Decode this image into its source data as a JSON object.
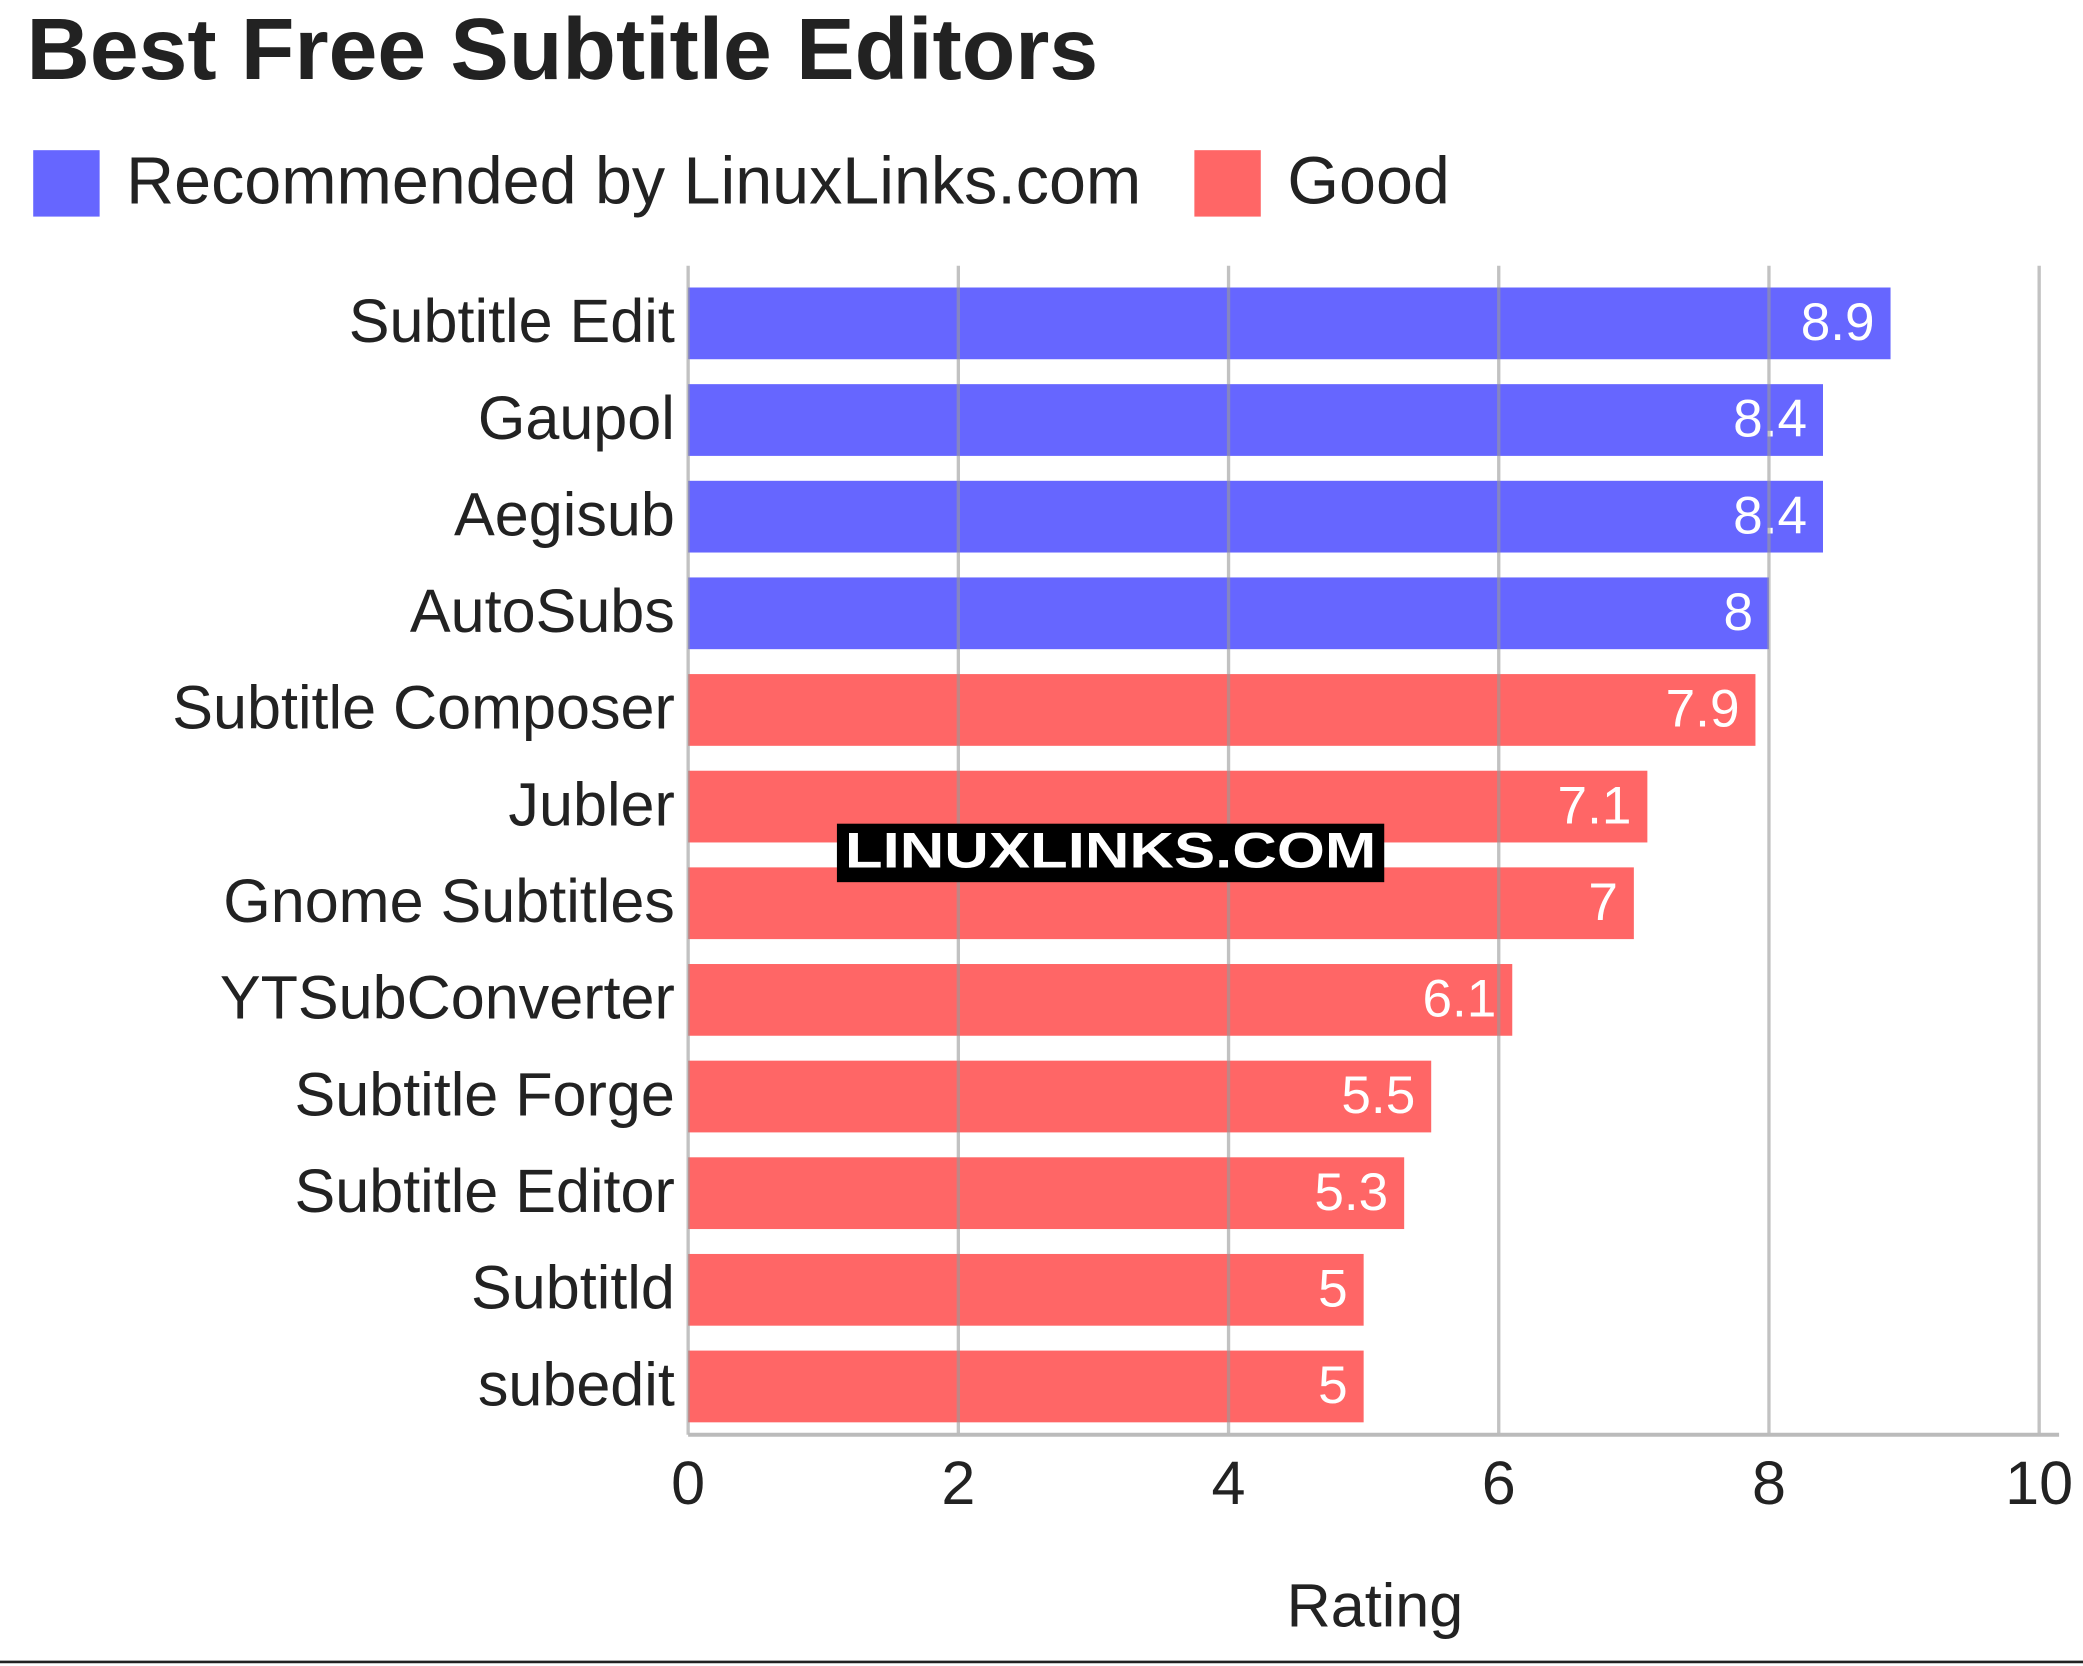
{
  "chart_data": {
    "type": "bar",
    "orientation": "horizontal",
    "title": "Best Free Subtitle Editors",
    "categories": [
      "Subtitle Edit",
      "Gaupol",
      "Aegisub",
      "AutoSubs",
      "Subtitle Composer",
      "Jubler",
      "Gnome Subtitles",
      "YTSubConverter",
      "Subtitle Forge",
      "Subtitle Editor",
      "Subtitld",
      "subedit"
    ],
    "series": [
      {
        "name": "Recommended by LinuxLinks.com",
        "color": "#6666ff",
        "values": [
          8.9,
          8.4,
          8.4,
          8,
          null,
          null,
          null,
          null,
          null,
          null,
          null,
          null
        ]
      },
      {
        "name": "Good",
        "color": "#ff6666",
        "values": [
          null,
          null,
          null,
          null,
          7.9,
          7.1,
          7,
          6.1,
          5.5,
          5.3,
          5,
          5
        ]
      }
    ],
    "xlim": [
      0,
      10
    ],
    "xticks": [
      0,
      2,
      4,
      6,
      8,
      10
    ],
    "xlabel": "Rating",
    "grid": true,
    "legend": "top-left",
    "watermark": "LINUXLINKS.COM"
  }
}
